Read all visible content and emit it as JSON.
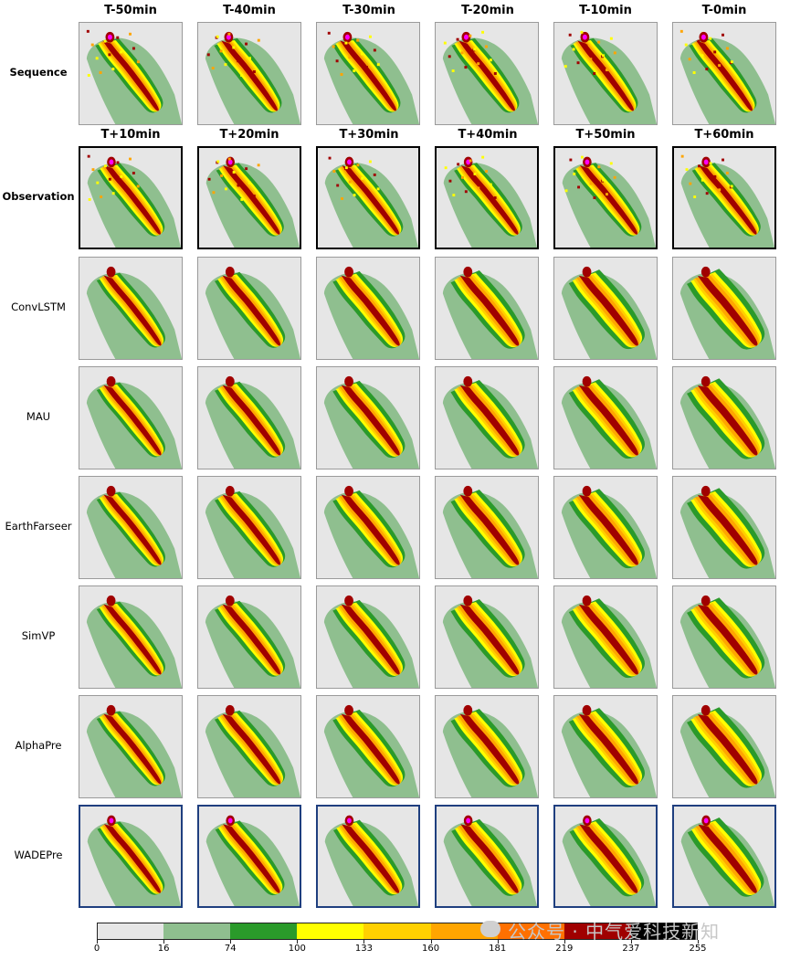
{
  "columns": {
    "sequence": [
      "T-50min",
      "T-40min",
      "T-30min",
      "T-20min",
      "T-10min",
      "T-0min"
    ],
    "future": [
      "T+10min",
      "T+20min",
      "T+30min",
      "T+40min",
      "T+50min",
      "T+60min"
    ]
  },
  "rows": [
    {
      "label": "Sequence",
      "emphasis": "bold",
      "frame": "none"
    },
    {
      "label": "Observation",
      "emphasis": "bold",
      "frame": "black"
    },
    {
      "label": "ConvLSTM",
      "emphasis": "normal",
      "frame": "none"
    },
    {
      "label": "MAU",
      "emphasis": "normal",
      "frame": "none"
    },
    {
      "label": "EarthFarseer",
      "emphasis": "normal",
      "frame": "none"
    },
    {
      "label": "SimVP",
      "emphasis": "normal",
      "frame": "none"
    },
    {
      "label": "AlphaPre",
      "emphasis": "normal",
      "frame": "none"
    },
    {
      "label": "WADEPre",
      "emphasis": "normal",
      "frame": "blue"
    }
  ],
  "colorbar": {
    "ticks": [
      "0",
      "16",
      "74",
      "100",
      "133",
      "160",
      "181",
      "219",
      "237",
      "255"
    ],
    "colors": [
      "#e6e6e6",
      "#8fbf8f",
      "#2a9a2a",
      "#ffff00",
      "#ffd000",
      "#ffa500",
      "#ff7000",
      "#a00000",
      "#ff00ff",
      "#000000"
    ]
  },
  "watermark": "公众号 · 中气爱科技新知"
}
